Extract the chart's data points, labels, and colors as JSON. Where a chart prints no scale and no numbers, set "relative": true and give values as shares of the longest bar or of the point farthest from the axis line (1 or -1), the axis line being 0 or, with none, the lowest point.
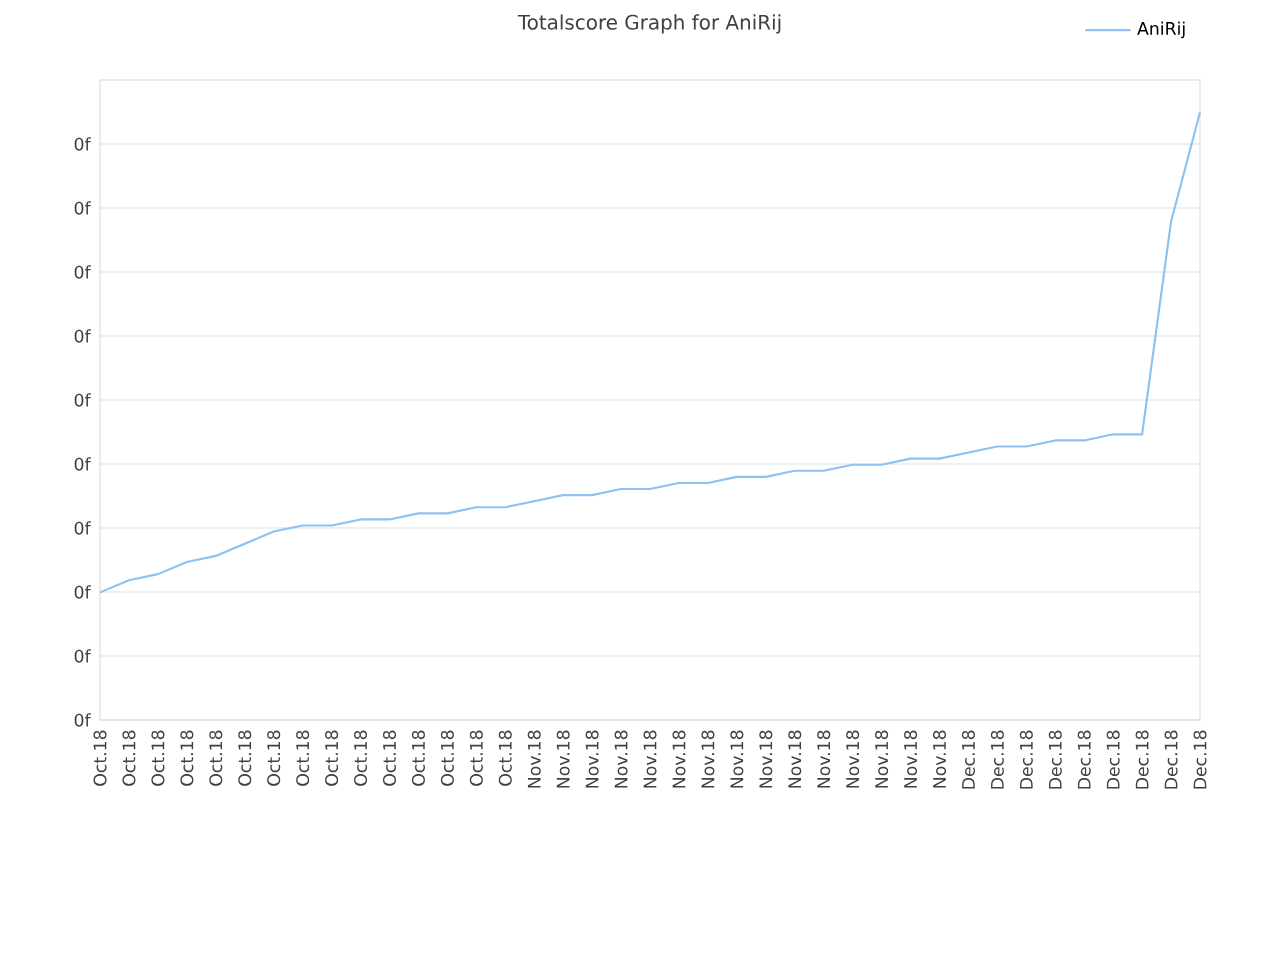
{
  "chart_data": {
    "type": "line",
    "title": "Totalscore Graph for AniRij",
    "relative": true,
    "categories": [
      "Oct.18",
      "Oct.18",
      "Oct.18",
      "Oct.18",
      "Oct.18",
      "Oct.18",
      "Oct.18",
      "Oct.18",
      "Oct.18",
      "Oct.18",
      "Oct.18",
      "Oct.18",
      "Oct.18",
      "Oct.18",
      "Oct.18",
      "Nov.18",
      "Nov.18",
      "Nov.18",
      "Nov.18",
      "Nov.18",
      "Nov.18",
      "Nov.18",
      "Nov.18",
      "Nov.18",
      "Nov.18",
      "Nov.18",
      "Nov.18",
      "Nov.18",
      "Nov.18",
      "Nov.18",
      "Dec.18",
      "Dec.18",
      "Dec.18",
      "Dec.18",
      "Dec.18",
      "Dec.18",
      "Dec.18",
      "Dec.18",
      "Dec.18"
    ],
    "series": [
      {
        "name": "AniRij",
        "color": "#8ec1f0",
        "values": [
          0.21,
          0.23,
          0.24,
          0.26,
          0.27,
          0.29,
          0.31,
          0.32,
          0.32,
          0.33,
          0.33,
          0.34,
          0.34,
          0.35,
          0.35,
          0.36,
          0.37,
          0.37,
          0.38,
          0.38,
          0.39,
          0.39,
          0.4,
          0.4,
          0.41,
          0.41,
          0.42,
          0.42,
          0.43,
          0.43,
          0.44,
          0.45,
          0.45,
          0.46,
          0.46,
          0.47,
          0.47,
          0.82,
          1
        ]
      }
    ],
    "annotations": [
      "0f",
      "0f",
      "0f",
      "0f",
      "0f",
      "0f",
      "0f",
      "0f",
      "0f",
      "0f"
    ],
    "grid": "y",
    "legend": "top right",
    "marker": "none",
    "line_style": "solid"
  }
}
